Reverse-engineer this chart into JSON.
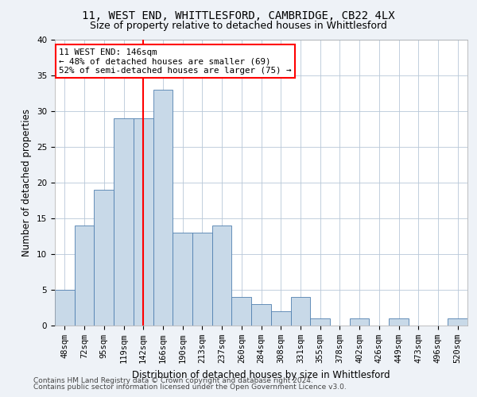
{
  "title1": "11, WEST END, WHITTLESFORD, CAMBRIDGE, CB22 4LX",
  "title2": "Size of property relative to detached houses in Whittlesford",
  "xlabel": "Distribution of detached houses by size in Whittlesford",
  "ylabel": "Number of detached properties",
  "categories": [
    "48sqm",
    "72sqm",
    "95sqm",
    "119sqm",
    "142sqm",
    "166sqm",
    "190sqm",
    "213sqm",
    "237sqm",
    "260sqm",
    "284sqm",
    "308sqm",
    "331sqm",
    "355sqm",
    "378sqm",
    "402sqm",
    "426sqm",
    "449sqm",
    "473sqm",
    "496sqm",
    "520sqm"
  ],
  "values": [
    5,
    14,
    19,
    29,
    29,
    33,
    13,
    13,
    14,
    4,
    3,
    2,
    4,
    1,
    0,
    1,
    0,
    1,
    0,
    0,
    1
  ],
  "bar_color": "#c8d9e8",
  "bar_edge_color": "#5080b0",
  "property_line_x": 4.0,
  "annotation_line1": "11 WEST END: 146sqm",
  "annotation_line2": "← 48% of detached houses are smaller (69)",
  "annotation_line3": "52% of semi-detached houses are larger (75) →",
  "annotation_box_color": "white",
  "annotation_box_edge_color": "red",
  "vline_color": "red",
  "ylim": [
    0,
    40
  ],
  "yticks": [
    0,
    5,
    10,
    15,
    20,
    25,
    30,
    35,
    40
  ],
  "footer1": "Contains HM Land Registry data © Crown copyright and database right 2024.",
  "footer2": "Contains public sector information licensed under the Open Government Licence v3.0.",
  "bg_color": "#eef2f7",
  "plot_bg_color": "white",
  "title_fontsize": 10,
  "subtitle_fontsize": 9,
  "axis_label_fontsize": 8.5,
  "tick_fontsize": 7.5,
  "footer_fontsize": 6.5,
  "annotation_fontsize": 7.8
}
